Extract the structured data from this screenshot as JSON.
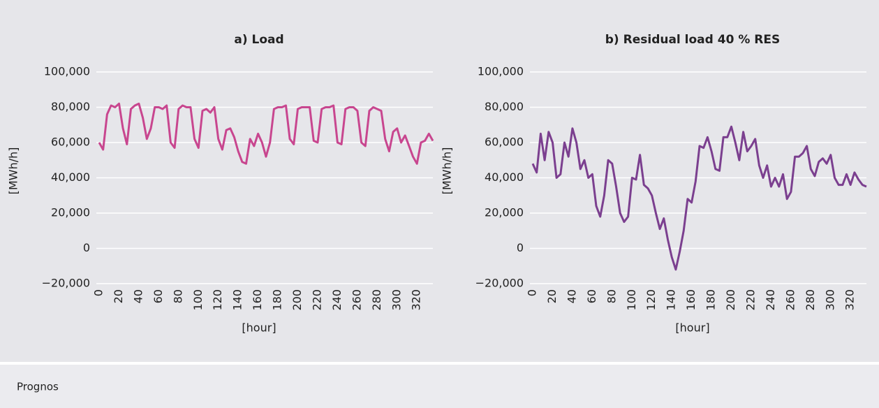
{
  "chart_data": [
    {
      "type": "line",
      "title": "a) Load",
      "ylabel": "[MWh/h]",
      "xlabel": "[hour]",
      "xlim": [
        0,
        336
      ],
      "xticks": [
        0,
        20,
        40,
        60,
        80,
        100,
        120,
        140,
        160,
        180,
        200,
        220,
        240,
        260,
        280,
        300,
        320
      ],
      "ylim": [
        -20000,
        100000
      ],
      "yticks": [
        {
          "value": -20000,
          "label": "−20,000"
        },
        0,
        {
          "value": 20000,
          "label": "20,000"
        },
        {
          "value": 40000,
          "label": "40,000"
        },
        {
          "value": 60000,
          "label": "60,000"
        },
        {
          "value": 80000,
          "label": "80,000"
        },
        {
          "value": 100000,
          "label": "100,000"
        }
      ],
      "grid": true,
      "x": [
        0,
        4,
        8,
        12,
        16,
        20,
        24,
        28,
        32,
        36,
        40,
        44,
        48,
        52,
        56,
        60,
        64,
        68,
        72,
        76,
        80,
        84,
        88,
        92,
        96,
        100,
        104,
        108,
        112,
        116,
        120,
        124,
        128,
        132,
        136,
        140,
        144,
        148,
        152,
        156,
        160,
        164,
        168,
        172,
        176,
        180,
        184,
        188,
        192,
        196,
        200,
        204,
        208,
        212,
        216,
        220,
        224,
        228,
        232,
        236,
        240,
        244,
        248,
        252,
        256,
        260,
        264,
        268,
        272,
        276,
        280,
        284,
        288,
        292,
        296,
        300,
        304,
        308,
        312,
        316,
        320,
        324,
        328,
        332,
        336
      ],
      "series": [
        {
          "color": "#c8468f",
          "values": [
            60000,
            56000,
            76000,
            81000,
            80000,
            82000,
            68000,
            59000,
            79000,
            81000,
            82000,
            74000,
            62000,
            68000,
            80000,
            80000,
            79000,
            81000,
            60000,
            57000,
            79000,
            81000,
            80000,
            80000,
            62000,
            57000,
            78000,
            79000,
            77000,
            80000,
            62000,
            56000,
            67000,
            68000,
            63000,
            55000,
            49000,
            48000,
            62000,
            58000,
            65000,
            60000,
            52000,
            60000,
            79000,
            80000,
            80000,
            81000,
            62000,
            59000,
            79000,
            80000,
            80000,
            80000,
            61000,
            60000,
            79000,
            80000,
            80000,
            81000,
            60000,
            59000,
            79000,
            80000,
            80000,
            78000,
            60000,
            58000,
            78000,
            80000,
            79000,
            78000,
            62000,
            55000,
            66000,
            68000,
            60000,
            64000,
            58000,
            52000,
            48000,
            60000,
            61000,
            65000,
            61000
          ]
        }
      ]
    },
    {
      "type": "line",
      "title": "b) Residual load 40 % RES",
      "ylabel": "[MWh/h]",
      "xlabel": "[hour]",
      "xlim": [
        0,
        336
      ],
      "xticks": [
        0,
        20,
        40,
        60,
        80,
        100,
        120,
        140,
        160,
        180,
        200,
        220,
        240,
        260,
        280,
        300,
        320
      ],
      "ylim": [
        -20000,
        100000
      ],
      "yticks": [
        {
          "value": -20000,
          "label": "−20,000"
        },
        0,
        {
          "value": 20000,
          "label": "20,000"
        },
        {
          "value": 40000,
          "label": "40,000"
        },
        {
          "value": 60000,
          "label": "60,000"
        },
        {
          "value": 80000,
          "label": "80,000"
        },
        {
          "value": 100000,
          "label": "100,000"
        }
      ],
      "grid": true,
      "x": [
        0,
        4,
        8,
        12,
        16,
        20,
        24,
        28,
        32,
        36,
        40,
        44,
        48,
        52,
        56,
        60,
        64,
        68,
        72,
        76,
        80,
        84,
        88,
        92,
        96,
        100,
        104,
        108,
        112,
        116,
        120,
        124,
        128,
        132,
        136,
        140,
        144,
        148,
        152,
        156,
        160,
        164,
        168,
        172,
        176,
        180,
        184,
        188,
        192,
        196,
        200,
        204,
        208,
        212,
        216,
        220,
        224,
        228,
        232,
        236,
        240,
        244,
        248,
        252,
        256,
        260,
        264,
        268,
        272,
        276,
        280,
        284,
        288,
        292,
        296,
        300,
        304,
        308,
        312,
        316,
        320,
        324,
        328,
        332,
        336
      ],
      "series": [
        {
          "color": "#7b3f8f",
          "values": [
            48000,
            43000,
            65000,
            50000,
            66000,
            60000,
            40000,
            42000,
            60000,
            52000,
            68000,
            60000,
            45000,
            50000,
            40000,
            42000,
            24000,
            18000,
            30000,
            50000,
            48000,
            35000,
            20000,
            15000,
            18000,
            40000,
            39000,
            53000,
            36000,
            34000,
            30000,
            20000,
            11000,
            17000,
            5000,
            -5000,
            -12000,
            -2000,
            10000,
            28000,
            26000,
            38000,
            58000,
            57000,
            63000,
            55000,
            45000,
            44000,
            63000,
            63000,
            69000,
            60000,
            50000,
            66000,
            55000,
            58000,
            62000,
            47000,
            40000,
            47000,
            35000,
            40000,
            35000,
            42000,
            28000,
            32000,
            52000,
            52000,
            54000,
            58000,
            45000,
            41000,
            49000,
            51000,
            48000,
            53000,
            40000,
            36000,
            36000,
            42000,
            36000,
            43000,
            39000,
            36000,
            35000
          ]
        }
      ]
    }
  ],
  "source": "Prognos"
}
